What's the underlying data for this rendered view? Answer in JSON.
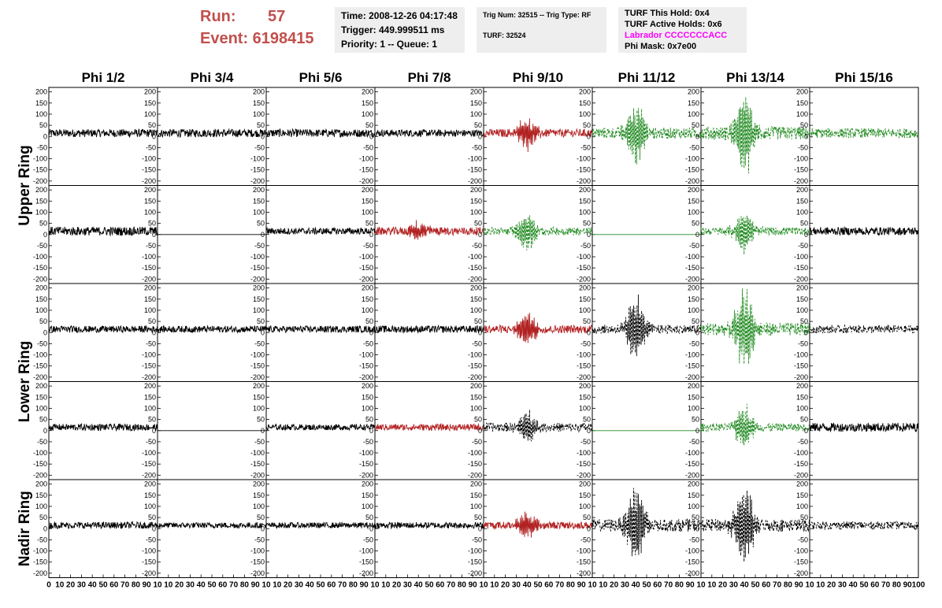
{
  "header": {
    "run_label": "Run:",
    "run_value": "57",
    "event_label": "Event: 6198415",
    "time": "Time: 2008-12-26 04:17:48",
    "trigger": "Trigger: 449.999511 ms",
    "priority": "Priority: 1 -- Queue: 1",
    "trig_num": "Trig Num: 32515 -- Trig Type: RF",
    "turf": "TURF: 32524",
    "turf_this_hold": "TURF This Hold: 0x4",
    "turf_active_holds": "TURF Active Holds: 0x6",
    "labrador": "Labrador CCCCCCCACC",
    "phi_mask": "Phi Mask: 0x7e00"
  },
  "colors": {
    "header_red": "#c0504d",
    "labrador_magenta": "#ff00ff",
    "normal": "#000000",
    "red": "#b22222",
    "green": "#228b22"
  },
  "chart_data": {
    "type": "line",
    "title": "",
    "columns": [
      "Phi 1/2",
      "Phi 3/4",
      "Phi 5/6",
      "Phi 7/8",
      "Phi 9/10",
      "Phi 11/12",
      "Phi 13/14",
      "Phi 15/16"
    ],
    "row_labels": [
      "Upper Ring",
      "Lower Ring",
      "Nadir Ring"
    ],
    "ylim": [
      -220,
      220
    ],
    "yticks": [
      -200,
      -150,
      -100,
      -50,
      0,
      50,
      100,
      150,
      200
    ],
    "xlim": [
      0,
      100
    ],
    "xticks": [
      0,
      10,
      20,
      30,
      40,
      50,
      60,
      70,
      80,
      90,
      100
    ],
    "x_tick_labels": [
      "0",
      "10",
      "20",
      "30",
      "40",
      "50",
      "60",
      "70",
      "80",
      "90",
      "10",
      "10",
      "20",
      "30",
      "40",
      "50",
      "60",
      "70",
      "80",
      "90",
      "10",
      "10",
      "20",
      "30",
      "40",
      "50",
      "60",
      "70",
      "80",
      "90",
      "10",
      "10",
      "20",
      "30",
      "40",
      "50",
      "60",
      "70",
      "80",
      "90",
      "10",
      "10",
      "20",
      "30",
      "40",
      "50",
      "60",
      "70",
      "80",
      "90",
      "10",
      "10",
      "20",
      "30",
      "40",
      "50",
      "60",
      "70",
      "80",
      "90",
      "10",
      "10",
      "20",
      "30",
      "40",
      "50",
      "60",
      "70",
      "80",
      "90",
      "10",
      "10",
      "20",
      "30",
      "40",
      "50",
      "60",
      "70",
      "80",
      "90",
      "100"
    ],
    "grid": false,
    "panels": [
      [
        {
          "style": "solid",
          "color": "normal",
          "amp": 18,
          "peak": 0
        },
        {
          "style": "solid",
          "color": "normal",
          "amp": 18,
          "peak": 0
        },
        {
          "style": "solid",
          "color": "normal",
          "amp": 18,
          "peak": 0
        },
        {
          "style": "solid",
          "color": "normal",
          "amp": 16,
          "peak": 0
        },
        {
          "style": "solid",
          "color": "red",
          "amp": 18,
          "peak": 75
        },
        {
          "style": "dashed",
          "color": "green",
          "amp": 25,
          "peak": 140
        },
        {
          "style": "dashed",
          "color": "green",
          "amp": 30,
          "peak": 200
        },
        {
          "style": "dashed",
          "color": "green",
          "amp": 22,
          "peak": 0
        }
      ],
      [
        {
          "style": "solid",
          "color": "normal",
          "amp": 20,
          "peak": 0
        },
        {
          "style": "flat",
          "color": "normal",
          "amp": 0,
          "peak": 0
        },
        {
          "style": "solid",
          "color": "normal",
          "amp": 15,
          "peak": 0
        },
        {
          "style": "solid",
          "color": "red",
          "amp": 18,
          "peak": 40
        },
        {
          "style": "dashed",
          "color": "green",
          "amp": 18,
          "peak": 90
        },
        {
          "style": "flat",
          "color": "green",
          "amp": 0,
          "peak": 0
        },
        {
          "style": "dashed",
          "color": "green",
          "amp": 18,
          "peak": 100
        },
        {
          "style": "solid",
          "color": "normal",
          "amp": 18,
          "peak": 0
        }
      ],
      [
        {
          "style": "solid",
          "color": "normal",
          "amp": 15,
          "peak": 0
        },
        {
          "style": "solid",
          "color": "normal",
          "amp": 15,
          "peak": 0
        },
        {
          "style": "solid",
          "color": "normal",
          "amp": 15,
          "peak": 0
        },
        {
          "style": "solid",
          "color": "normal",
          "amp": 16,
          "peak": 0
        },
        {
          "style": "solid",
          "color": "red",
          "amp": 18,
          "peak": 85
        },
        {
          "style": "dashed",
          "color": "normal",
          "amp": 20,
          "peak": 150
        },
        {
          "style": "dashed",
          "color": "green",
          "amp": 30,
          "peak": 190
        },
        {
          "style": "dashed",
          "color": "normal",
          "amp": 18,
          "peak": 0
        }
      ],
      [
        {
          "style": "solid",
          "color": "normal",
          "amp": 15,
          "peak": 0
        },
        {
          "style": "flat",
          "color": "normal",
          "amp": 0,
          "peak": 0
        },
        {
          "style": "solid",
          "color": "normal",
          "amp": 13,
          "peak": 0
        },
        {
          "style": "solid",
          "color": "red",
          "amp": 15,
          "peak": 0
        },
        {
          "style": "dashed",
          "color": "normal",
          "amp": 20,
          "peak": 70
        },
        {
          "style": "flat",
          "color": "green",
          "amp": 0,
          "peak": 0
        },
        {
          "style": "dashed",
          "color": "green",
          "amp": 18,
          "peak": 100
        },
        {
          "style": "solid",
          "color": "normal",
          "amp": 20,
          "peak": 0
        }
      ],
      [
        {
          "style": "solid",
          "color": "normal",
          "amp": 15,
          "peak": 0
        },
        {
          "style": "solid",
          "color": "normal",
          "amp": 13,
          "peak": 0
        },
        {
          "style": "solid",
          "color": "normal",
          "amp": 13,
          "peak": 0
        },
        {
          "style": "solid",
          "color": "normal",
          "amp": 14,
          "peak": 0
        },
        {
          "style": "solid",
          "color": "red",
          "amp": 16,
          "peak": 60
        },
        {
          "style": "dashed",
          "color": "normal",
          "amp": 28,
          "peak": 180
        },
        {
          "style": "dashed",
          "color": "normal",
          "amp": 28,
          "peak": 200
        },
        {
          "style": "dashed",
          "color": "normal",
          "amp": 18,
          "peak": 0
        }
      ]
    ]
  }
}
